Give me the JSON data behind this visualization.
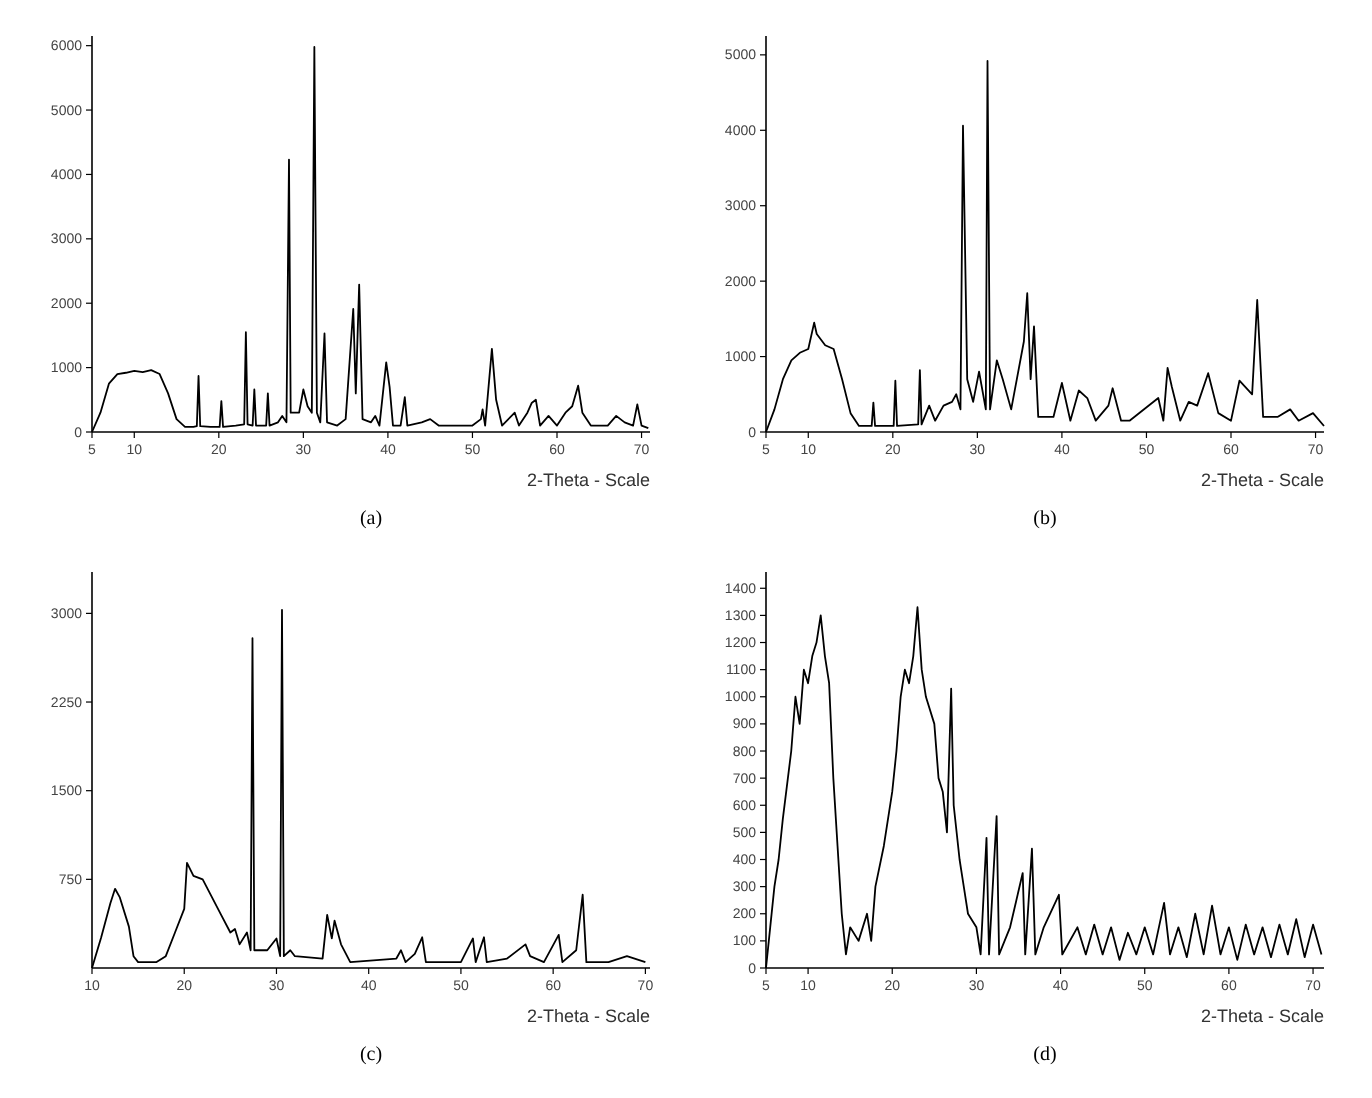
{
  "chart_data": [
    {
      "type": "line",
      "title": "(a)",
      "xlabel": "2-Theta - Scale",
      "xlim": [
        5,
        71
      ],
      "xticks": [
        5,
        10,
        20,
        30,
        40,
        50,
        60,
        70
      ],
      "ylim": [
        0,
        6150
      ],
      "yticks": [
        0,
        1000,
        2000,
        3000,
        4000,
        5000,
        6000
      ],
      "x": [
        5,
        6,
        7,
        8,
        9,
        10,
        11,
        12,
        13,
        14,
        15,
        16,
        17,
        17.4,
        17.6,
        17.8,
        19,
        20.1,
        20.3,
        20.5,
        22,
        23,
        23.2,
        23.4,
        24,
        24.2,
        24.4,
        25.6,
        25.8,
        26,
        27,
        27.5,
        28,
        28.3,
        28.5,
        29.5,
        30,
        30.5,
        31,
        31.3,
        31.6,
        32,
        32.5,
        32.8,
        34,
        35,
        35.9,
        36.2,
        36.6,
        37,
        38,
        38.5,
        39,
        39.8,
        40.2,
        40.6,
        41.5,
        42,
        42.3,
        44,
        45,
        46,
        48,
        50,
        51,
        51.2,
        51.5,
        52.3,
        52.8,
        53.5,
        55,
        55.5,
        56.5,
        57,
        57.5,
        58,
        59,
        60,
        61,
        61.8,
        62.5,
        63,
        64,
        66,
        67,
        68,
        69,
        69.5,
        70,
        70.8
      ],
      "series": [
        {
          "color": "#000000",
          "values": [
            0,
            300,
            750,
            900,
            920,
            950,
            930,
            960,
            900,
            600,
            200,
            80,
            80,
            90,
            870,
            90,
            80,
            80,
            480,
            80,
            100,
            120,
            1550,
            120,
            100,
            660,
            100,
            100,
            600,
            100,
            150,
            250,
            150,
            4230,
            300,
            300,
            660,
            400,
            300,
            5980,
            300,
            150,
            1530,
            150,
            100,
            200,
            1910,
            600,
            2290,
            200,
            150,
            250,
            100,
            1080,
            700,
            100,
            100,
            540,
            100,
            150,
            200,
            100,
            100,
            100,
            200,
            350,
            100,
            1290,
            500,
            100,
            300,
            100,
            300,
            450,
            500,
            100,
            250,
            100,
            300,
            400,
            720,
            300,
            100,
            100,
            250,
            150,
            100,
            430,
            100,
            60
          ]
        }
      ]
    },
    {
      "type": "line",
      "title": "(b)",
      "xlabel": "2-Theta - Scale",
      "xlim": [
        5,
        71
      ],
      "xticks": [
        5,
        10,
        20,
        30,
        40,
        50,
        60,
        70
      ],
      "ylim": [
        0,
        5250
      ],
      "yticks": [
        0,
        1000,
        2000,
        3000,
        4000,
        5000
      ],
      "x": [
        5,
        6,
        7,
        8,
        9,
        10,
        10.7,
        11,
        12,
        13,
        14,
        15,
        16,
        17.5,
        17.7,
        17.9,
        20.1,
        20.3,
        20.5,
        23,
        23.2,
        23.4,
        24.3,
        25,
        26,
        27,
        27.5,
        28,
        28.3,
        28.8,
        29.5,
        30.2,
        31,
        31.2,
        31.5,
        32.3,
        33,
        34,
        35.5,
        35.9,
        36.3,
        36.7,
        37.2,
        39,
        40,
        41,
        42,
        43,
        44,
        45.5,
        46,
        47,
        48,
        51.4,
        52,
        52.5,
        53,
        54,
        55,
        56,
        57.3,
        58.5,
        60,
        61,
        62.5,
        63.1,
        63.8,
        65.5,
        67,
        68,
        69.7,
        71
      ],
      "series": [
        {
          "color": "#000000",
          "values": [
            0,
            300,
            700,
            950,
            1050,
            1100,
            1450,
            1300,
            1150,
            1100,
            700,
            250,
            80,
            80,
            390,
            80,
            80,
            680,
            80,
            100,
            820,
            100,
            350,
            150,
            350,
            400,
            500,
            300,
            4060,
            700,
            400,
            800,
            300,
            4920,
            300,
            950,
            700,
            300,
            1200,
            1840,
            700,
            1400,
            200,
            200,
            650,
            150,
            550,
            450,
            150,
            350,
            580,
            150,
            150,
            450,
            150,
            850,
            600,
            150,
            400,
            350,
            780,
            250,
            150,
            680,
            500,
            1750,
            200,
            200,
            300,
            150,
            250,
            80
          ]
        }
      ]
    },
    {
      "type": "line",
      "title": "(c)",
      "xlabel": "2-Theta - Scale",
      "xlim": [
        10,
        70.5
      ],
      "xticks": [
        10,
        20,
        30,
        40,
        50,
        60,
        70
      ],
      "ylim": [
        0,
        3350
      ],
      "yticks": [
        750,
        1500,
        2250,
        3000
      ],
      "x": [
        10,
        11,
        12,
        12.5,
        13,
        14,
        14.5,
        15,
        17,
        18,
        19,
        20,
        20.3,
        21,
        22,
        23,
        24,
        25,
        25.5,
        26,
        26.8,
        27.2,
        27.4,
        27.6,
        28,
        29,
        30,
        30.4,
        30.6,
        30.8,
        31.5,
        32,
        35,
        35.5,
        36,
        36.3,
        37,
        38,
        43,
        43.5,
        44,
        45,
        45.8,
        46.2,
        50,
        51.3,
        51.6,
        52.5,
        52.8,
        55,
        57,
        57.5,
        59,
        60.6,
        61,
        62.5,
        63.2,
        63.6,
        66,
        68,
        70
      ],
      "series": [
        {
          "color": "#000000",
          "values": [
            0,
            260,
            550,
            670,
            600,
            350,
            100,
            50,
            50,
            100,
            300,
            500,
            890,
            780,
            750,
            600,
            450,
            300,
            330,
            200,
            300,
            150,
            2790,
            150,
            150,
            150,
            250,
            100,
            3030,
            100,
            150,
            100,
            80,
            450,
            250,
            400,
            200,
            50,
            80,
            150,
            50,
            120,
            260,
            50,
            50,
            250,
            50,
            260,
            50,
            80,
            200,
            100,
            50,
            280,
            50,
            150,
            620,
            50,
            50,
            100,
            50
          ]
        }
      ]
    },
    {
      "type": "line",
      "title": "(d)",
      "xlabel": "2-Theta - Scale",
      "xlim": [
        5,
        71.3
      ],
      "xticks": [
        5,
        10,
        20,
        30,
        40,
        50,
        60,
        70
      ],
      "ylim": [
        0,
        1460
      ],
      "yticks": [
        0,
        100,
        200,
        300,
        400,
        500,
        600,
        700,
        800,
        900,
        1000,
        1100,
        1200,
        1300,
        1400
      ],
      "x": [
        5,
        5.5,
        6,
        6.5,
        7,
        8,
        8.5,
        9,
        9.5,
        10,
        10.5,
        11,
        11.5,
        12,
        12.5,
        13,
        13.5,
        14,
        14.5,
        15,
        16,
        17,
        17.5,
        18,
        19,
        20,
        20.5,
        21,
        21.5,
        22,
        22.5,
        23,
        23.5,
        24,
        25,
        25.5,
        26,
        26.5,
        27,
        27.3,
        28,
        28.5,
        29,
        30,
        30.5,
        31.2,
        31.5,
        32.4,
        32.7,
        34,
        35.5,
        35.8,
        36.6,
        37,
        38,
        39.8,
        40.2,
        42,
        43,
        44,
        45,
        46,
        47,
        48,
        49,
        50,
        51,
        52.3,
        53,
        54,
        55,
        56,
        57,
        58,
        59,
        60,
        61,
        62,
        63,
        64,
        65,
        66,
        67,
        68,
        69,
        70,
        71
      ],
      "series": [
        {
          "color": "#000000",
          "values": [
            0,
            150,
            300,
            400,
            550,
            800,
            1000,
            900,
            1100,
            1050,
            1150,
            1200,
            1300,
            1150,
            1050,
            700,
            450,
            200,
            50,
            150,
            100,
            200,
            100,
            300,
            450,
            650,
            800,
            1000,
            1100,
            1050,
            1150,
            1330,
            1100,
            1000,
            900,
            700,
            650,
            500,
            1030,
            600,
            400,
            300,
            200,
            150,
            50,
            480,
            50,
            560,
            50,
            150,
            350,
            50,
            440,
            50,
            150,
            270,
            50,
            150,
            50,
            160,
            50,
            150,
            30,
            130,
            50,
            150,
            50,
            240,
            50,
            150,
            40,
            200,
            50,
            230,
            50,
            150,
            30,
            160,
            50,
            150,
            40,
            160,
            50,
            180,
            40,
            160,
            50
          ]
        }
      ]
    }
  ]
}
